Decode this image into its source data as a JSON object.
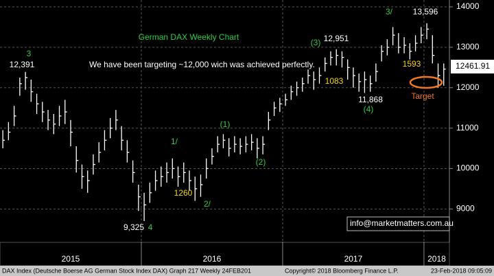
{
  "chart_data": {
    "type": "hlc",
    "x": [
      2015.02,
      2015.06,
      2015.1,
      2015.14,
      2015.18,
      2015.22,
      2015.26,
      2015.3,
      2015.34,
      2015.38,
      2015.42,
      2015.46,
      2015.5,
      2015.54,
      2015.58,
      2015.62,
      2015.66,
      2015.7,
      2015.74,
      2015.78,
      2015.82,
      2015.86,
      2015.9,
      2015.94,
      2015.98,
      2016.02,
      2016.06,
      2016.1,
      2016.14,
      2016.18,
      2016.22,
      2016.26,
      2016.3,
      2016.34,
      2016.38,
      2016.42,
      2016.46,
      2016.5,
      2016.54,
      2016.58,
      2016.62,
      2016.66,
      2016.7,
      2016.74,
      2016.78,
      2016.82,
      2016.86,
      2016.9,
      2016.94,
      2016.98,
      2017.02,
      2017.06,
      2017.1,
      2017.14,
      2017.18,
      2017.22,
      2017.26,
      2017.3,
      2017.34,
      2017.38,
      2017.42,
      2017.46,
      2017.5,
      2017.54,
      2017.58,
      2017.62,
      2017.66,
      2017.7,
      2017.74,
      2017.78,
      2017.82,
      2017.86,
      2017.9,
      2017.94,
      2017.98,
      2018.02,
      2018.06,
      2018.1,
      2018.14
    ],
    "high": [
      10950,
      11150,
      11550,
      12250,
      12391,
      12200,
      11850,
      11650,
      11450,
      11350,
      11550,
      11700,
      11200,
      10550,
      10100,
      9950,
      10350,
      10650,
      10950,
      11250,
      11450,
      11050,
      10700,
      10200,
      9600,
      9400,
      9650,
      9950,
      10050,
      10150,
      10250,
      10050,
      10150,
      9950,
      9800,
      9850,
      10250,
      10500,
      10800,
      10850,
      10750,
      10800,
      10750,
      10800,
      10850,
      10750,
      10800,
      11400,
      11650,
      11750,
      11850,
      12050,
      12150,
      12250,
      12450,
      12400,
      12500,
      12750,
      12900,
      12951,
      12900,
      12700,
      12500,
      12350,
      12400,
      12300,
      12600,
      13050,
      13200,
      13500,
      13350,
      13250,
      13100,
      13300,
      13500,
      13596,
      13300,
      12600,
      12600
    ],
    "low": [
      10500,
      10700,
      11050,
      11800,
      11950,
      11650,
      11350,
      11150,
      10950,
      10850,
      11050,
      11100,
      10550,
      9900,
      9500,
      9400,
      9850,
      10150,
      10450,
      10750,
      10950,
      10450,
      10150,
      9650,
      8950,
      8700,
      9150,
      9450,
      9550,
      9650,
      9750,
      9550,
      9650,
      9450,
      9200,
      9300,
      9750,
      10100,
      10400,
      10500,
      10300,
      10400,
      10350,
      10400,
      10450,
      10250,
      10350,
      10950,
      11300,
      11400,
      11550,
      11700,
      11800,
      11900,
      12100,
      11950,
      12100,
      12400,
      12550,
      12550,
      12500,
      12200,
      12000,
      11900,
      11868,
      11900,
      12150,
      12650,
      12800,
      13050,
      12850,
      12850,
      12700,
      12900,
      13100,
      13200,
      12600,
      12000,
      12050
    ],
    "close": [
      10700,
      10900,
      11300,
      12100,
      12250,
      11900,
      11600,
      11400,
      11200,
      11100,
      11300,
      11400,
      10900,
      10200,
      9800,
      9700,
      10100,
      10400,
      10700,
      11000,
      11200,
      10700,
      10400,
      9900,
      9300,
      9100,
      9400,
      9700,
      9800,
      9900,
      10000,
      9800,
      9900,
      9700,
      9500,
      9600,
      10000,
      10300,
      10600,
      10700,
      10500,
      10600,
      10550,
      10600,
      10650,
      10500,
      10600,
      11200,
      11500,
      11600,
      11700,
      11900,
      12000,
      12100,
      12300,
      12200,
      12300,
      12600,
      12750,
      12800,
      12750,
      12500,
      12300,
      12150,
      12200,
      12100,
      12400,
      12900,
      13000,
      13300,
      13000,
      13050,
      12900,
      13100,
      13300,
      13450,
      12800,
      12300,
      12460
    ],
    "color": "#ffffff",
    "xlim": [
      2015,
      2018.18
    ],
    "xticks": [
      {
        "value": 2015.5,
        "label": "2015"
      },
      {
        "value": 2016.5,
        "label": "2016"
      },
      {
        "value": 2017.5,
        "label": "2017"
      },
      {
        "value": 2018.09,
        "label": "2018"
      }
    ],
    "x_dividers": [
      2016,
      2017,
      2018
    ],
    "ylim": [
      8190,
      14170
    ],
    "yticks": [
      9000,
      10000,
      11000,
      12000,
      13000,
      14000
    ],
    "grid": true,
    "last_price": 12461.91,
    "annotations": [
      "German DAX Weekly Chart",
      "We have been targeting ~12,000 wich was achieved perfectly.",
      "3",
      "12,391",
      "(3)",
      "12,951",
      "3/",
      "13,596",
      "1083",
      "1593",
      "11,868",
      "(4)",
      "Target",
      "(1)",
      "1/",
      "(2)",
      "1260",
      "2/",
      "9,325",
      "4",
      "info@marketmatters.com.au"
    ],
    "footer": [
      "DAX Index (Deutsche Boerse AG German Stock Index DAX) Graph 217  Weekly 24FEB201",
      "Copyright© 2018 Bloomberg Finance L.P.",
      "23-Feb-2018 09:05:09"
    ]
  }
}
